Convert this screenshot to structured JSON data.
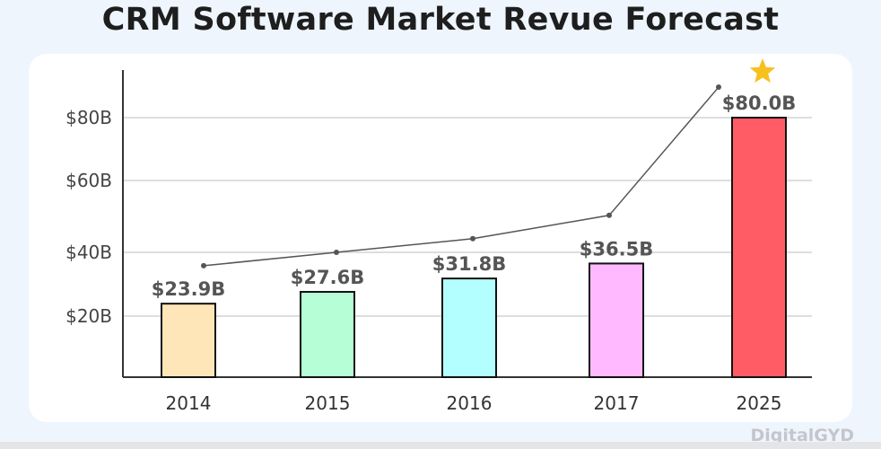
{
  "chart_data": {
    "type": "bar",
    "title": "CRM Software Market Revue Forecast",
    "categories": [
      "2014",
      "2015",
      "2016",
      "2017",
      "2025"
    ],
    "values": [
      23.9,
      27.6,
      31.8,
      36.5,
      80.0
    ],
    "data_labels": [
      "$23.9B",
      "$27.6B",
      "$31.8B",
      "$36.5B",
      "$80.0B"
    ],
    "bar_colors": [
      "#ffe6b8",
      "#b6ffd6",
      "#b3ffff",
      "#ffbaff",
      "#ff5c66"
    ],
    "trend_line": [
      35.8,
      40.0,
      43.8,
      50.3,
      89.7
    ],
    "y_ticks": [
      20,
      40,
      60,
      80
    ],
    "y_tick_labels": [
      "$20B",
      "$40B",
      "$60B",
      "$80B"
    ],
    "xlabel": "",
    "ylabel": "",
    "grid": true,
    "highlight_icon": "star-icon",
    "highlight_color": "#f7c01d"
  },
  "watermark": "DigitalGYD"
}
